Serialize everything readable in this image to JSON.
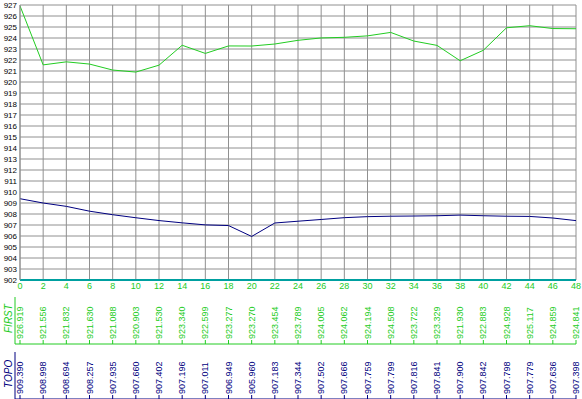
{
  "chart_data": {
    "type": "line",
    "x": [
      0,
      2,
      4,
      6,
      8,
      10,
      12,
      14,
      16,
      18,
      20,
      22,
      24,
      26,
      28,
      30,
      32,
      34,
      36,
      38,
      40,
      42,
      44,
      46,
      48
    ],
    "xlim": [
      0,
      48
    ],
    "xticks": [
      0,
      2,
      4,
      6,
      8,
      10,
      12,
      14,
      16,
      18,
      20,
      22,
      24,
      26,
      28,
      30,
      32,
      34,
      36,
      38,
      40,
      42,
      44,
      46,
      48
    ],
    "ylim": [
      902,
      927
    ],
    "yticks": [
      902,
      903,
      904,
      905,
      906,
      907,
      908,
      909,
      910,
      911,
      912,
      913,
      914,
      915,
      916,
      917,
      918,
      919,
      920,
      921,
      922,
      923,
      924,
      925,
      926,
      927
    ],
    "grid": true,
    "series": [
      {
        "name": "FIRST",
        "color": "#22cc22",
        "values": [
          926.919,
          921.556,
          921.832,
          921.63,
          921.088,
          920.903,
          921.53,
          923.34,
          922.599,
          923.277,
          923.27,
          923.454,
          923.789,
          924.005,
          924.062,
          924.194,
          924.508,
          923.722,
          923.329,
          921.93,
          922.883,
          924.928,
          925.117,
          924.859,
          924.841
        ],
        "value_labels": [
          "926.919",
          "921.556",
          "921.832",
          "921.630",
          "921.088",
          "920.903",
          "921.530",
          "923.340",
          "922.599",
          "923.277",
          "923.270",
          "923.454",
          "923.789",
          "924.005",
          "924.062",
          "924.194",
          "924.508",
          "923.722",
          "923.329",
          "921.930",
          "922.883",
          "924.928",
          "925.117",
          "924.859",
          "924.841"
        ]
      },
      {
        "name": "TOPO",
        "color": "#000080",
        "values": [
          909.39,
          908.998,
          908.694,
          908.257,
          907.935,
          907.66,
          907.402,
          907.196,
          907.011,
          906.949,
          905.96,
          907.183,
          907.344,
          907.502,
          907.666,
          907.759,
          907.799,
          907.816,
          907.841,
          907.9,
          907.842,
          907.798,
          907.779,
          907.636,
          907.398
        ],
        "value_labels": [
          "909.390",
          "908.998",
          "908.694",
          "908.257",
          "907.935",
          "907.660",
          "907.402",
          "907.196",
          "907.011",
          "906.949",
          "905.960",
          "907.183",
          "907.344",
          "907.502",
          "907.666",
          "907.759",
          "907.799",
          "907.816",
          "907.841",
          "907.900",
          "907.842",
          "907.798",
          "907.779",
          "907.636",
          "907.398"
        ]
      }
    ]
  }
}
